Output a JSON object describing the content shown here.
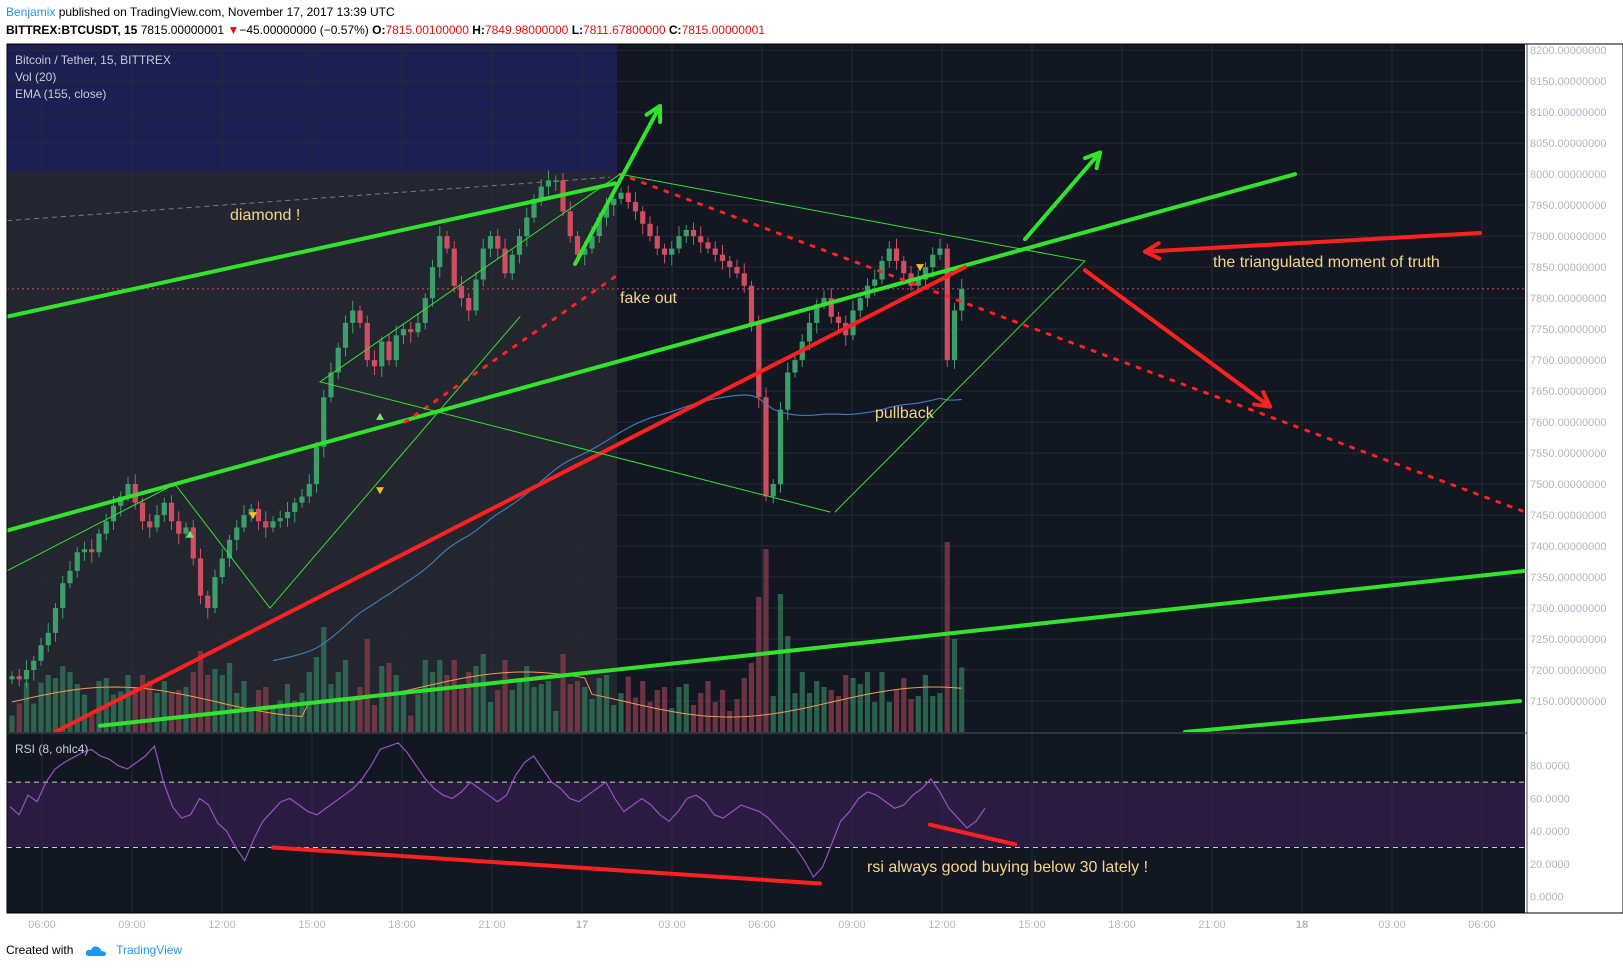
{
  "header": {
    "author": "Benjamix",
    "published": " published on TradingView.com, November 17, 2017 13:39 UTC",
    "symbol": "BITTREX:BTCUSDT, 15",
    "last": "7815.00000001",
    "change": "−45.00000000 (−0.57%)",
    "o_label": "O:",
    "o_value": "7815.00100000",
    "h_label": "H:",
    "h_value": "7849.98000000",
    "l_label": "L:",
    "l_value": "7811.67800000",
    "c_label": "C:",
    "c_value": "7815.00000001"
  },
  "legend": {
    "title": "Bitcoin / Tether, 15, BITTREX",
    "volume": "Vol (20)",
    "ema": "EMA (155, close)",
    "rsi": "RSI (8, ohlc4)"
  },
  "annotations": {
    "diamond": "diamond !",
    "fake_out": "fake out",
    "pullback": "pullback",
    "truth": "the triangulated moment of truth",
    "rsi_note": "rsi always good buying below 30 lately !"
  },
  "footer": {
    "created": "Created with",
    "brand": "TradingView"
  },
  "colors": {
    "background": "#131722",
    "up": "#3c9f6a",
    "down": "#d14e62",
    "trend_green": "#32e32e",
    "trend_red": "#ff2020",
    "annotation_text": "#f5d689",
    "rsi_line": "#9b4fc4",
    "ema_line": "#3d7ab5",
    "volume_ma": "#f59a4e"
  },
  "chart_data": [
    {
      "type": "candlestick",
      "title": "Bitcoin / Tether, 15, BITTREX",
      "y_axis_ticks": [
        "8200.00000000",
        "8150.00000000",
        "8100.00000000",
        "8050.00000000",
        "8000.00000000",
        "7950.00000000",
        "7900.00000000",
        "7850.00000000",
        "7800.00000000",
        "7750.00000000",
        "7700.00000000",
        "7650.00000000",
        "7600.00000000",
        "7550.00000000",
        "7500.00000000",
        "7450.00000000",
        "7400.00000000",
        "7350.00000000",
        "7300.00000000",
        "7250.00000000",
        "7200.00000000",
        "7150.00000000"
      ],
      "ylim": [
        7100,
        8210
      ],
      "x_axis_ticks": [
        "06:00",
        "09:00",
        "12:00",
        "15:00",
        "18:00",
        "21:00",
        "17",
        "03:00",
        "06:00",
        "09:00",
        "12:00",
        "15:00",
        "18:00",
        "21:00",
        "18",
        "03:00",
        "06:00"
      ],
      "last_price": 7815,
      "close_series": [
        7190,
        7185,
        7200,
        7215,
        7240,
        7260,
        7300,
        7340,
        7360,
        7390,
        7395,
        7390,
        7420,
        7440,
        7465,
        7480,
        7500,
        7470,
        7440,
        7430,
        7450,
        7470,
        7440,
        7420,
        7430,
        7380,
        7320,
        7300,
        7350,
        7380,
        7410,
        7430,
        7450,
        7460,
        7440,
        7430,
        7440,
        7445,
        7455,
        7470,
        7480,
        7500,
        7560,
        7640,
        7680,
        7720,
        7760,
        7780,
        7760,
        7700,
        7690,
        7730,
        7700,
        7740,
        7750,
        7745,
        7760,
        7800,
        7850,
        7900,
        7880,
        7820,
        7800,
        7780,
        7830,
        7880,
        7900,
        7880,
        7840,
        7870,
        7900,
        7930,
        7960,
        7980,
        7990,
        7990,
        7940,
        7900,
        7870,
        7880,
        7900,
        7930,
        7950,
        7960,
        7970,
        7955,
        7940,
        7920,
        7900,
        7880,
        7870,
        7880,
        7900,
        7910,
        7900,
        7890,
        7880,
        7870,
        7860,
        7850,
        7840,
        7820,
        7760,
        7640,
        7480,
        7500,
        7620,
        7680,
        7700,
        7730,
        7760,
        7790,
        7800,
        7770,
        7760,
        7740,
        7780,
        7800,
        7820,
        7830,
        7860,
        7880,
        7860,
        7840,
        7820,
        7830,
        7850,
        7870,
        7880,
        7700,
        7780,
        7815
      ],
      "volume_ma": "Vol (20)",
      "ema": "EMA (155, close)"
    },
    {
      "type": "line",
      "title": "RSI (8, ohlc4)",
      "y_axis_ticks": [
        "80.0000",
        "60.0000",
        "40.0000",
        "20.0000",
        "0.0000"
      ],
      "ylim": [
        -10,
        100
      ],
      "bands": [
        30,
        70
      ],
      "values": [
        55,
        50,
        62,
        58,
        70,
        78,
        82,
        85,
        88,
        90,
        86,
        84,
        80,
        78,
        82,
        86,
        92,
        70,
        55,
        48,
        50,
        60,
        56,
        45,
        40,
        30,
        22,
        35,
        46,
        52,
        58,
        60,
        56,
        52,
        50,
        54,
        58,
        62,
        66,
        72,
        80,
        90,
        92,
        94,
        88,
        80,
        72,
        66,
        62,
        60,
        64,
        70,
        66,
        62,
        58,
        62,
        74,
        82,
        86,
        78,
        70,
        66,
        60,
        58,
        62,
        66,
        70,
        60,
        52,
        56,
        60,
        56,
        50,
        46,
        52,
        60,
        62,
        58,
        50,
        48,
        52,
        56,
        54,
        52,
        48,
        42,
        36,
        30,
        22,
        12,
        18,
        32,
        46,
        52,
        60,
        64,
        62,
        58,
        54,
        56,
        62,
        66,
        72,
        64,
        54,
        48,
        42,
        46,
        54
      ]
    }
  ]
}
